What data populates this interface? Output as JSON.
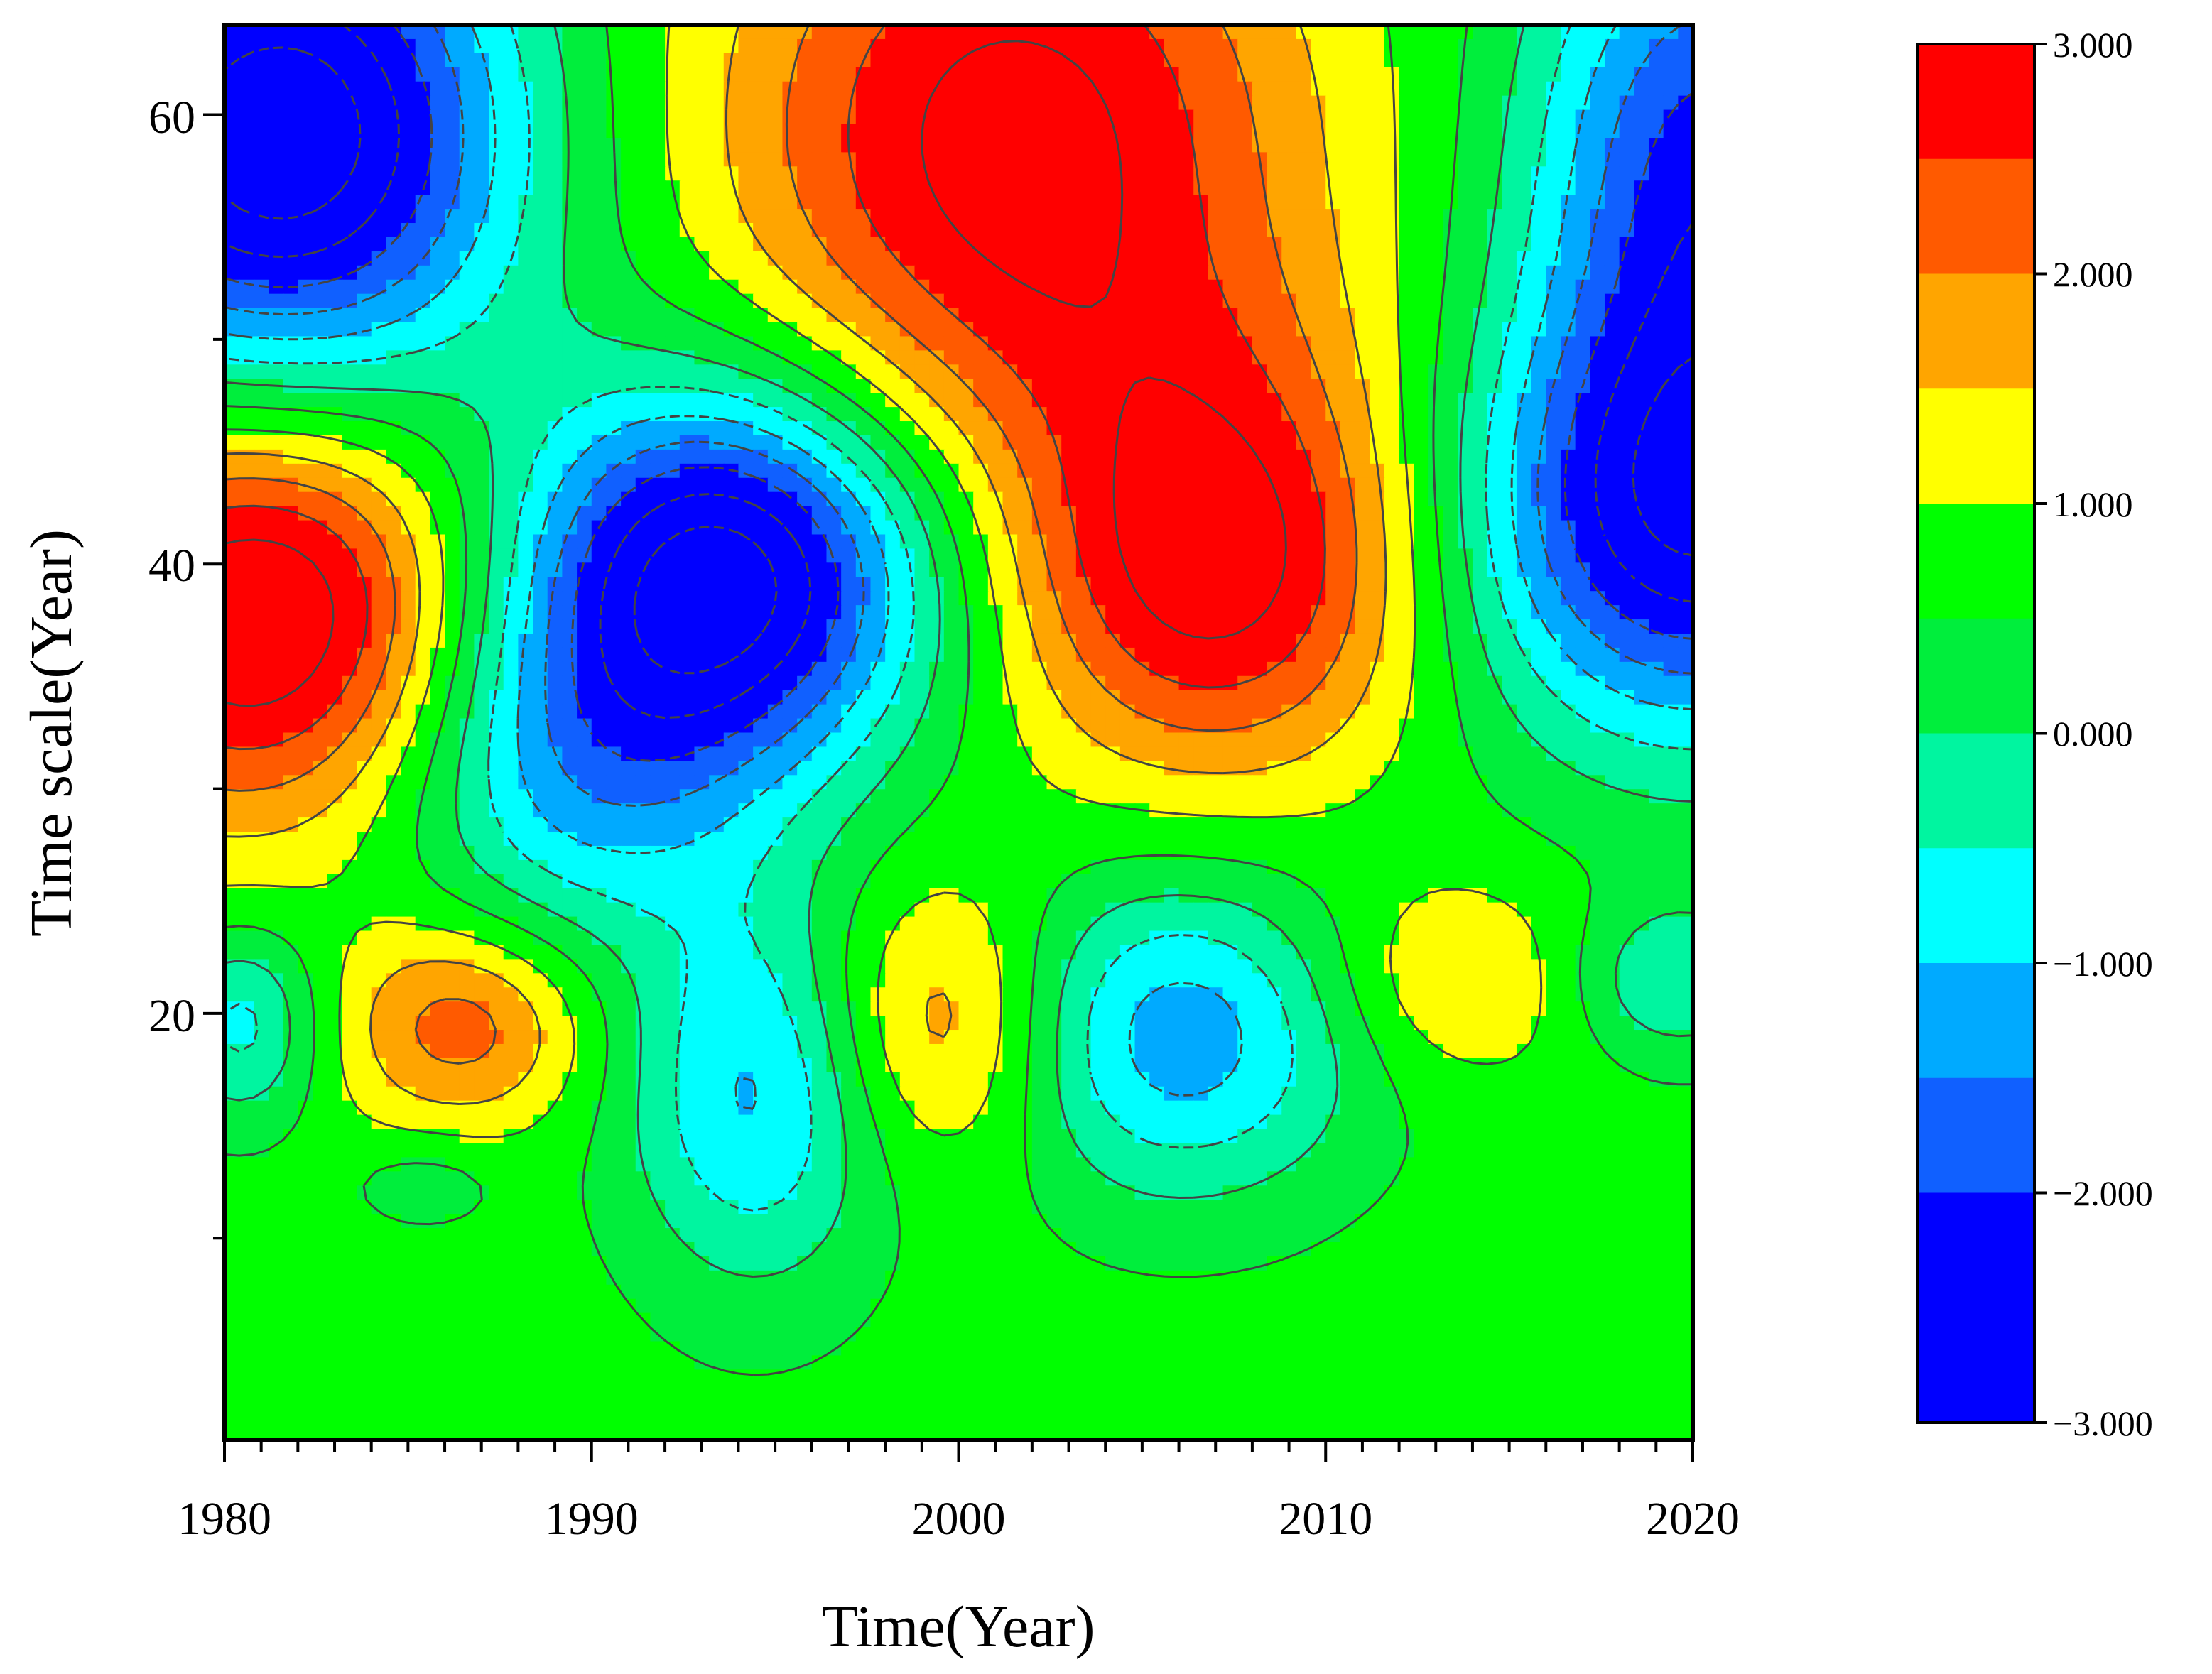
{
  "chart_data": {
    "type": "heatmap",
    "subtype": "filled-contour",
    "title": "",
    "xlabel": "Time(Year)",
    "ylabel": "Time scale(Year)",
    "xlim": [
      1980,
      2020
    ],
    "ylim": [
      1,
      64
    ],
    "xticks": [
      1980,
      1990,
      2000,
      2010,
      2020
    ],
    "yticks": [
      20,
      40,
      60
    ],
    "xtick_labels": [
      "1980",
      "1990",
      "2000",
      "2010",
      "2020"
    ],
    "ytick_labels": [
      "20",
      "40",
      "60"
    ],
    "contour_levels": [
      -3,
      -2.5,
      -2,
      -1.5,
      -1,
      -0.5,
      0,
      0.5,
      1,
      1.5,
      2,
      2.5,
      3
    ],
    "negative_contours_dashed": true,
    "colorbar": {
      "ticks": [
        3,
        2,
        1,
        0,
        -1,
        -2,
        -3
      ],
      "tick_labels": [
        "3.000",
        "2.000",
        "1.000",
        "0.000",
        "−1.000",
        "−2.000",
        "−3.000"
      ],
      "bands": [
        {
          "from": 2.5,
          "to": 3.0,
          "color": "#ff0000"
        },
        {
          "from": 2.0,
          "to": 2.5,
          "color": "#ff5a00"
        },
        {
          "from": 1.5,
          "to": 2.0,
          "color": "#ffa500"
        },
        {
          "from": 1.0,
          "to": 1.5,
          "color": "#ffff00"
        },
        {
          "from": 0.5,
          "to": 1.0,
          "color": "#00ff00"
        },
        {
          "from": 0.0,
          "to": 0.5,
          "color": "#00ee3c"
        },
        {
          "from": -0.5,
          "to": 0.0,
          "color": "#00f5a0"
        },
        {
          "from": -1.0,
          "to": -0.5,
          "color": "#00ffff"
        },
        {
          "from": -1.5,
          "to": -1.0,
          "color": "#00aaff"
        },
        {
          "from": -2.0,
          "to": -1.5,
          "color": "#1060ff"
        },
        {
          "from": -3.0,
          "to": -2.0,
          "color": "#0000ff"
        }
      ]
    },
    "background_value": 0.7,
    "features": [
      {
        "x": 1981.5,
        "y": 59,
        "sx": 4.5,
        "sy": 8,
        "amp": -4.2
      },
      {
        "x": 1981.0,
        "y": 38,
        "sx": 4.0,
        "sy": 6.5,
        "amp": 3.0
      },
      {
        "x": 1993.5,
        "y": 39.5,
        "sx": 4.0,
        "sy": 6.0,
        "amp": -4.0
      },
      {
        "x": 1989.5,
        "y": 30.5,
        "sx": 3.5,
        "sy": 5.5,
        "amp": -1.6
      },
      {
        "x": 1994.5,
        "y": 16.5,
        "sx": 2.5,
        "sy": 6.0,
        "amp": -1.8
      },
      {
        "x": 1986.5,
        "y": 19.5,
        "sx": 2.4,
        "sy": 3.2,
        "amp": 1.6
      },
      {
        "x": 1999.5,
        "y": 19.5,
        "sx": 2.4,
        "sy": 4.5,
        "amp": 1.4
      },
      {
        "x": 2006.0,
        "y": 19.0,
        "sx": 3.5,
        "sy": 5.0,
        "amp": -2.0
      },
      {
        "x": 2013.5,
        "y": 21.5,
        "sx": 2.6,
        "sy": 3.2,
        "amp": 0.9
      },
      {
        "x": 2001.5,
        "y": 59.5,
        "sx": 5.5,
        "sy": 9.0,
        "amp": 2.5
      },
      {
        "x": 2007.0,
        "y": 40.0,
        "sx": 4.0,
        "sy": 6.5,
        "amp": 2.6
      },
      {
        "x": 2004.0,
        "y": 50.0,
        "sx": 6.0,
        "sy": 5.0,
        "amp": 0.4
      },
      {
        "x": 2020.0,
        "y": 42.0,
        "sx": 4.5,
        "sy": 7.0,
        "amp": -3.4
      },
      {
        "x": 2020.5,
        "y": 58.0,
        "sx": 3.5,
        "sy": 9.0,
        "amp": -2.8
      },
      {
        "x": 2019.5,
        "y": 21.5,
        "sx": 2.0,
        "sy": 2.5,
        "amp": -1.2
      },
      {
        "x": 1980.5,
        "y": 19.5,
        "sx": 1.5,
        "sy": 3.0,
        "amp": -1.4
      },
      {
        "x": 1985.5,
        "y": 12.5,
        "sx": 1.5,
        "sy": 1.5,
        "amp": -0.5
      }
    ]
  }
}
